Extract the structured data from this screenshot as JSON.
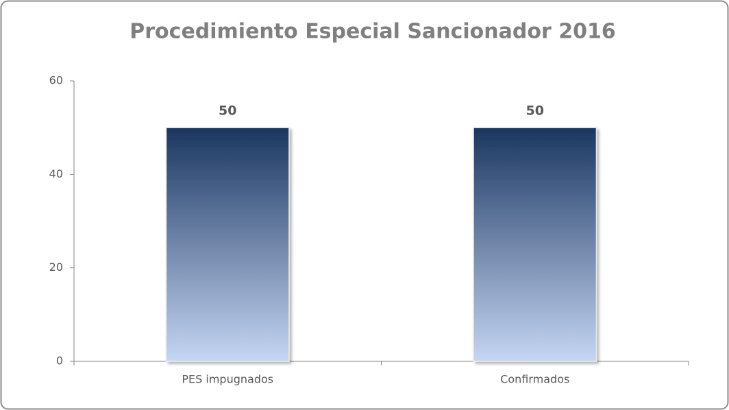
{
  "chart_data": {
    "type": "bar",
    "title": "Procedimiento Especial Sancionador 2016",
    "categories": [
      "PES impugnados",
      "Confirmados"
    ],
    "values": [
      50,
      50
    ],
    "color": "#1b3660",
    "ylim": [
      0,
      60
    ],
    "yticks": [
      0,
      20,
      40,
      60
    ],
    "grid": false
  }
}
